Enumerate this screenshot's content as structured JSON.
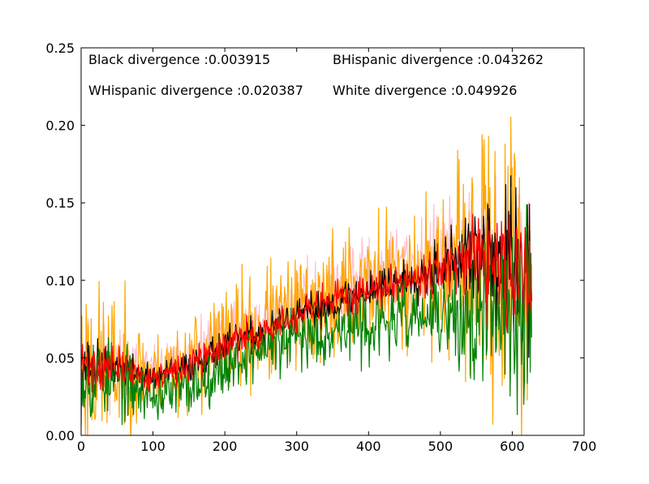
{
  "chart_data": {
    "type": "line",
    "title": "",
    "xlabel": "",
    "ylabel": "",
    "xlim": [
      0,
      700
    ],
    "ylim": [
      0,
      0.25
    ],
    "xticks": [
      0,
      100,
      200,
      300,
      400,
      500,
      600,
      700
    ],
    "yticks": [
      0.0,
      0.05,
      0.1,
      0.15,
      0.2,
      0.25
    ],
    "xtick_labels": [
      "0",
      "100",
      "200",
      "300",
      "400",
      "500",
      "600",
      "700"
    ],
    "ytick_labels": [
      "0.00",
      "0.05",
      "0.10",
      "0.15",
      "0.20",
      "0.25"
    ],
    "grid": false,
    "legend": "none",
    "annotations": [
      "Black divergence :0.003915",
      "BHispanic divergence :0.043262",
      "WHispanic divergence :0.020387",
      "White divergence :0.049926"
    ],
    "series": [
      {
        "color": "#ffc0cb",
        "base": [
          [
            0,
            0.048
          ],
          [
            50,
            0.046
          ],
          [
            100,
            0.041
          ],
          [
            150,
            0.05
          ],
          [
            200,
            0.064
          ],
          [
            250,
            0.07
          ],
          [
            300,
            0.082
          ],
          [
            350,
            0.092
          ],
          [
            400,
            0.102
          ],
          [
            450,
            0.108
          ],
          [
            500,
            0.113
          ],
          [
            550,
            0.118
          ],
          [
            600,
            0.108
          ],
          [
            625,
            0.095
          ]
        ],
        "noise": [
          0.022,
          0.018,
          0.012,
          0.012,
          0.014,
          0.016,
          0.018,
          0.022,
          0.024,
          0.024,
          0.026,
          0.032,
          0.04,
          0.045
        ],
        "seed": 11
      },
      {
        "color": "#ffa500",
        "base": [
          [
            0,
            0.045
          ],
          [
            50,
            0.044
          ],
          [
            100,
            0.04
          ],
          [
            150,
            0.045
          ],
          [
            200,
            0.06
          ],
          [
            250,
            0.068
          ],
          [
            300,
            0.078
          ],
          [
            350,
            0.088
          ],
          [
            400,
            0.098
          ],
          [
            450,
            0.102
          ],
          [
            500,
            0.107
          ],
          [
            550,
            0.108
          ],
          [
            600,
            0.105
          ],
          [
            625,
            0.09
          ]
        ],
        "noise": [
          0.045,
          0.035,
          0.018,
          0.024,
          0.028,
          0.03,
          0.028,
          0.032,
          0.034,
          0.034,
          0.036,
          0.055,
          0.08,
          0.08
        ],
        "seed": 23
      },
      {
        "color": "#000000",
        "base": [
          [
            0,
            0.045
          ],
          [
            50,
            0.044
          ],
          [
            100,
            0.037
          ],
          [
            150,
            0.044
          ],
          [
            200,
            0.058
          ],
          [
            250,
            0.066
          ],
          [
            300,
            0.076
          ],
          [
            350,
            0.085
          ],
          [
            400,
            0.094
          ],
          [
            450,
            0.1
          ],
          [
            500,
            0.11
          ],
          [
            550,
            0.115
          ],
          [
            600,
            0.11
          ],
          [
            625,
            0.1
          ]
        ],
        "noise": [
          0.014,
          0.01,
          0.006,
          0.008,
          0.008,
          0.008,
          0.008,
          0.01,
          0.01,
          0.01,
          0.014,
          0.022,
          0.04,
          0.04
        ],
        "seed": 37
      },
      {
        "color": "#008000",
        "base": [
          [
            0,
            0.04
          ],
          [
            50,
            0.035
          ],
          [
            100,
            0.025
          ],
          [
            150,
            0.03
          ],
          [
            200,
            0.045
          ],
          [
            250,
            0.055
          ],
          [
            300,
            0.062
          ],
          [
            350,
            0.068
          ],
          [
            400,
            0.07
          ],
          [
            450,
            0.075
          ],
          [
            500,
            0.076
          ],
          [
            550,
            0.072
          ],
          [
            600,
            0.08
          ],
          [
            625,
            0.09
          ]
        ],
        "noise": [
          0.025,
          0.018,
          0.012,
          0.014,
          0.014,
          0.014,
          0.016,
          0.016,
          0.016,
          0.016,
          0.018,
          0.035,
          0.05,
          0.06
        ],
        "seed": 53
      },
      {
        "color": "#ff0000",
        "base": [
          [
            0,
            0.045
          ],
          [
            50,
            0.044
          ],
          [
            100,
            0.037
          ],
          [
            150,
            0.044
          ],
          [
            200,
            0.058
          ],
          [
            250,
            0.066
          ],
          [
            300,
            0.076
          ],
          [
            350,
            0.086
          ],
          [
            400,
            0.095
          ],
          [
            450,
            0.101
          ],
          [
            500,
            0.108
          ],
          [
            550,
            0.112
          ],
          [
            600,
            0.105
          ],
          [
            625,
            0.095
          ]
        ],
        "noise": [
          0.014,
          0.01,
          0.006,
          0.008,
          0.008,
          0.008,
          0.008,
          0.01,
          0.01,
          0.01,
          0.012,
          0.02,
          0.03,
          0.032
        ],
        "seed": 71
      }
    ]
  }
}
